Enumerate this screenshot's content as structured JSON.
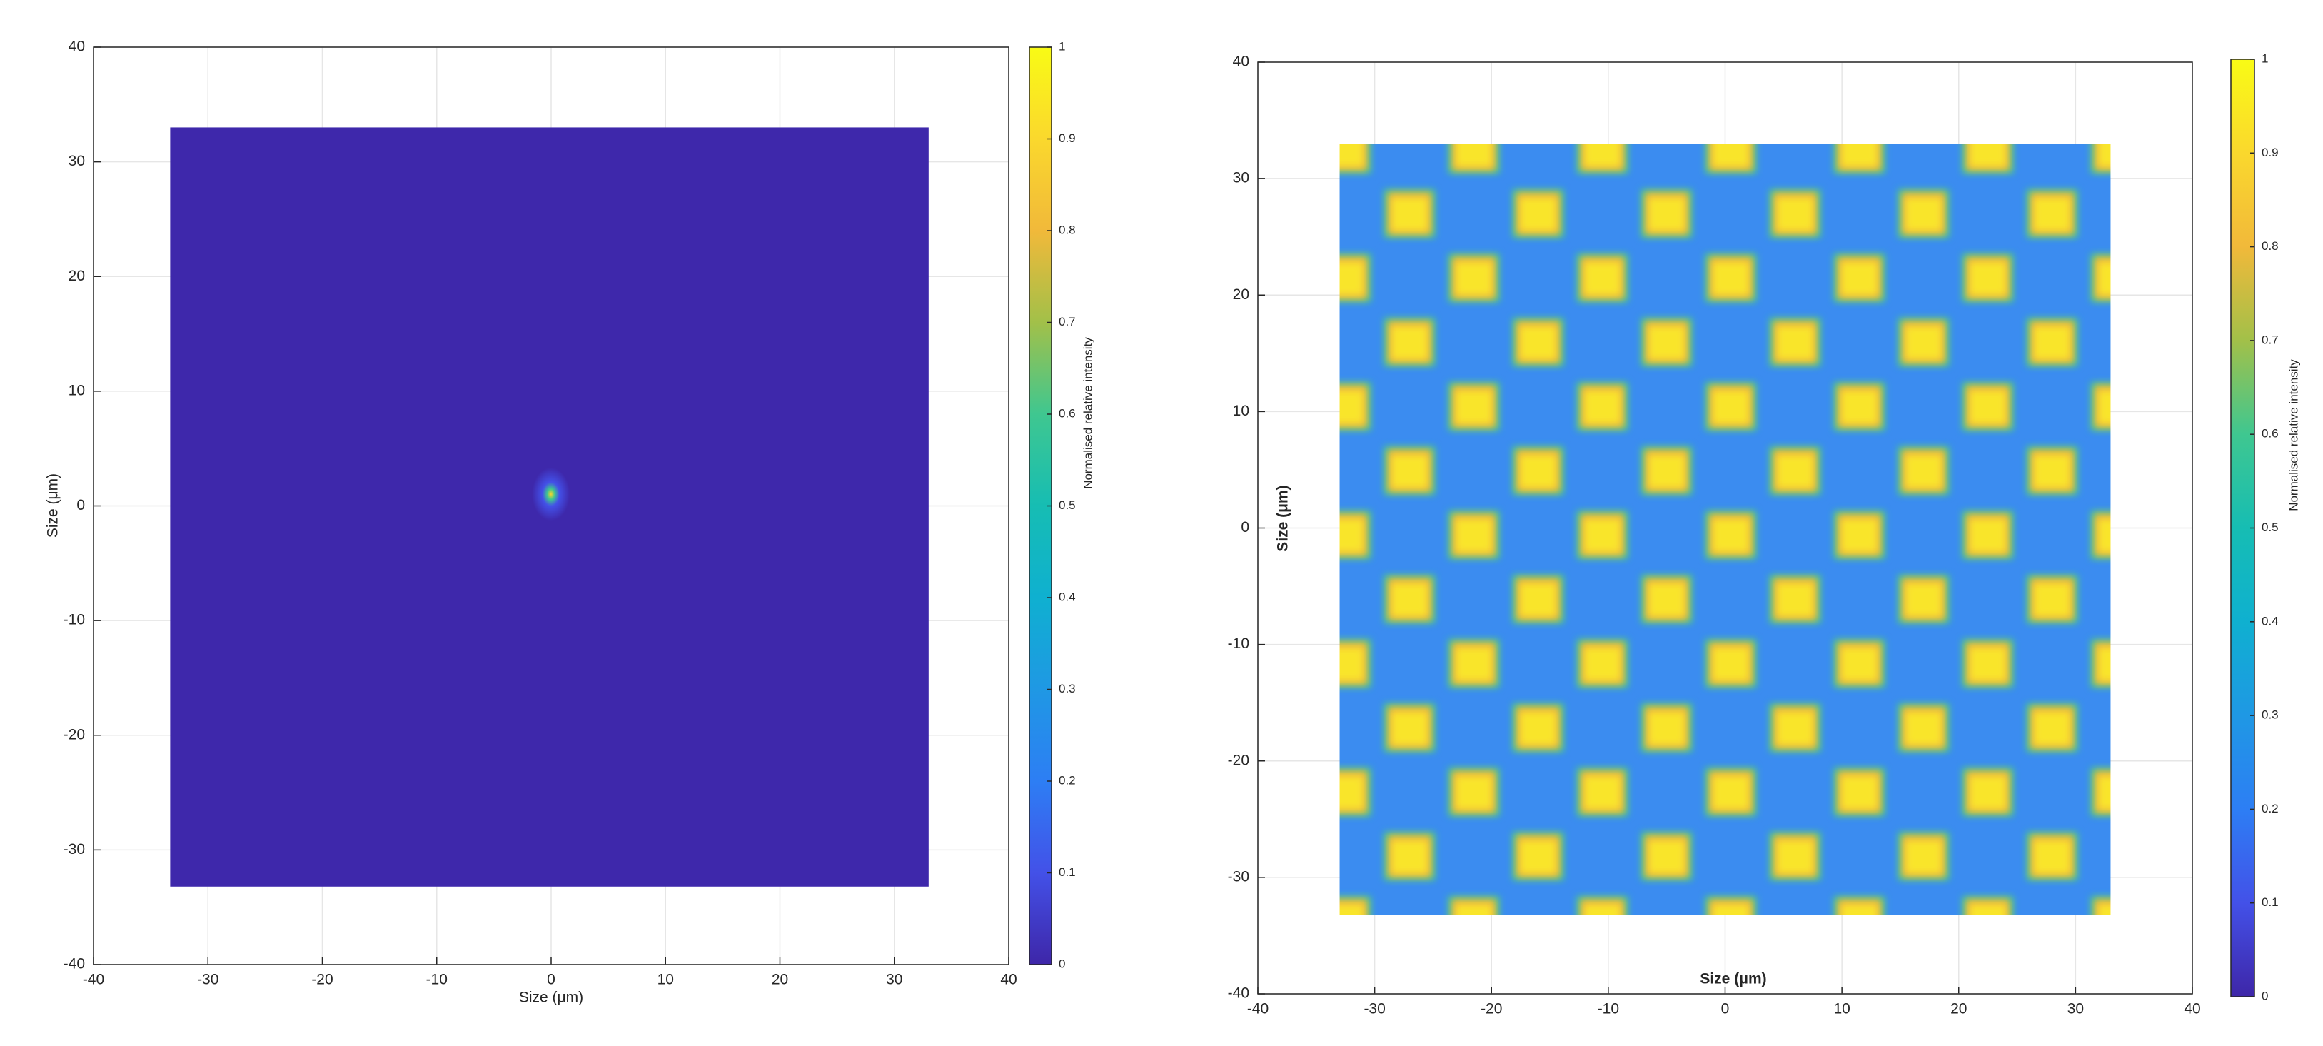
{
  "chart_data": [
    {
      "type": "heatmap",
      "xlabel": "Size (μm)",
      "ylabel": "Size (μm)",
      "xlim": [
        -40,
        40
      ],
      "ylim": [
        -40,
        40
      ],
      "xticks": [
        -40,
        -30,
        -20,
        -10,
        0,
        10,
        20,
        30,
        40
      ],
      "yticks": [
        -40,
        -30,
        -20,
        -10,
        0,
        10,
        20,
        30,
        40
      ],
      "x_extent": [
        -33.3,
        33
      ],
      "y_extent": [
        -33.2,
        33
      ],
      "grid": true,
      "colorbar": {
        "label": "Normalised relative intensity",
        "lim": [
          0,
          1
        ],
        "ticks": [
          0,
          0.1,
          0.2,
          0.3,
          0.4,
          0.5,
          0.6,
          0.7,
          0.8,
          0.9,
          1
        ]
      }
    },
    {
      "type": "heatmap",
      "xlabel": "Size (μm)",
      "ylabel": "Size (μm)",
      "xlim": [
        -40,
        40
      ],
      "ylim": [
        -40,
        40
      ],
      "xticks": [
        -40,
        -30,
        -20,
        -10,
        0,
        10,
        20,
        30,
        40
      ],
      "yticks": [
        -40,
        -30,
        -20,
        -10,
        0,
        10,
        20,
        30,
        40
      ],
      "x_extent": [
        -33,
        33
      ],
      "y_extent": [
        -33.2,
        33
      ],
      "grid": true,
      "colorbar": {
        "label": "Normalised relative intensity",
        "lim": [
          0,
          1
        ],
        "ticks": [
          0,
          0.1,
          0.2,
          0.3,
          0.4,
          0.5,
          0.6,
          0.7,
          0.8,
          0.9,
          1
        ]
      }
    }
  ]
}
